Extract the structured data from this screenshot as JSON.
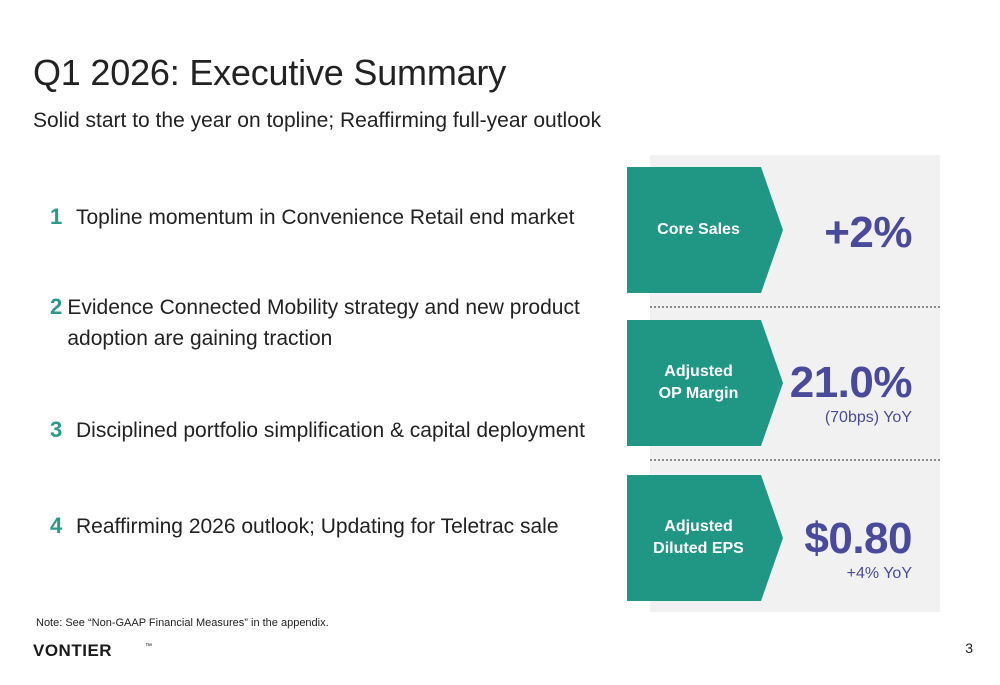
{
  "slide": {
    "title": "Q1 2026: Executive Summary",
    "subtitle": "Solid start to the year on topline; Reaffirming full-year outlook",
    "page_number": "3",
    "note": "Note: See “Non-GAAP Financial Measures” in the appendix.",
    "logo_text": "VONTIER",
    "logo_mark": "™"
  },
  "points": [
    {
      "num": "1",
      "text": "Topline momentum in Convenience Retail end market"
    },
    {
      "num": "2",
      "text": "Evidence Connected Mobility strategy and new product adoption are gaining traction"
    },
    {
      "num": "3",
      "text": "Disciplined portfolio simplification & capital deployment"
    },
    {
      "num": "4",
      "text": "Reaffirming 2026 outlook; Updating for Teletrac sale"
    }
  ],
  "metrics": [
    {
      "label_line1": "Core Sales",
      "label_line2": "",
      "value": "+2%",
      "sub": ""
    },
    {
      "label_line1": "Adjusted",
      "label_line2": "OP Margin",
      "value": "21.0%",
      "sub": "(70bps) YoY"
    },
    {
      "label_line1": "Adjusted",
      "label_line2": "Diluted EPS",
      "value": "$0.80",
      "sub": "+4% YoY"
    }
  ],
  "colors": {
    "teal": "#1f9784",
    "number_teal": "#2a9a88",
    "metric_purple": "#4a4a9c",
    "panel_gray": "#f1f1f1"
  }
}
